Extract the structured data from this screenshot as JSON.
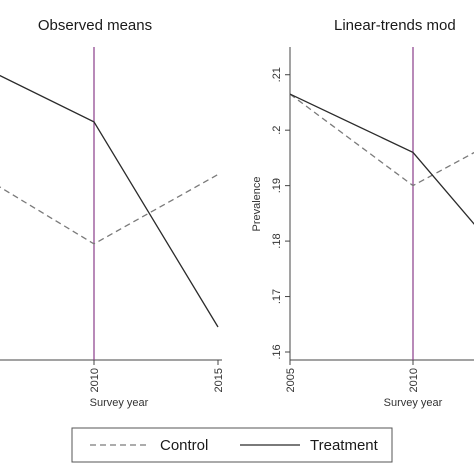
{
  "chart_data": [
    {
      "type": "line",
      "title": "Observed means",
      "xlabel": "Survey year",
      "ylabel": "",
      "x_tick_labels": [
        "2010",
        "2015"
      ],
      "x": [
        2005,
        2010,
        2015
      ],
      "xlim": [
        2005,
        2015
      ],
      "ylim": [
        0.16,
        0.215
      ],
      "y_ticks_shown": false,
      "reference_line_x": 2010,
      "series": [
        {
          "name": "Control",
          "style": "dashed",
          "color": "#7a7a7a",
          "values": [
            0.193,
            0.1795,
            0.192
          ]
        },
        {
          "name": "Treatment",
          "style": "solid",
          "color": "#2b2b2b",
          "values": [
            0.2125,
            0.2015,
            0.1645
          ]
        }
      ]
    },
    {
      "type": "line",
      "title": "Linear-trends mod",
      "xlabel": "Survey year",
      "ylabel": "Prevalence",
      "x_tick_labels": [
        "2005",
        "2010"
      ],
      "y_tick_labels": [
        ".16",
        ".17",
        ".18",
        ".19",
        ".2",
        ".21"
      ],
      "y_ticks": [
        0.16,
        0.17,
        0.18,
        0.19,
        0.2,
        0.21
      ],
      "x": [
        2005,
        2010,
        2015
      ],
      "xlim": [
        2005,
        2015
      ],
      "ylim": [
        0.16,
        0.215
      ],
      "reference_line_x": 2010,
      "series": [
        {
          "name": "Control",
          "style": "dashed",
          "color": "#7a7a7a",
          "values": [
            0.2065,
            0.19,
            0.202
          ]
        },
        {
          "name": "Treatment",
          "style": "solid",
          "color": "#2b2b2b",
          "values": [
            0.2065,
            0.196,
            0.17
          ]
        }
      ]
    }
  ],
  "legend": {
    "position": "bottom-center",
    "items": [
      {
        "label": "Control",
        "style": "dashed",
        "color": "#7a7a7a"
      },
      {
        "label": "Treatment",
        "style": "solid",
        "color": "#2b2b2b"
      }
    ]
  },
  "colors": {
    "reference_line": "#8a3c8a",
    "axis": "#444444",
    "control": "#7a7a7a",
    "treatment": "#2b2b2b"
  }
}
